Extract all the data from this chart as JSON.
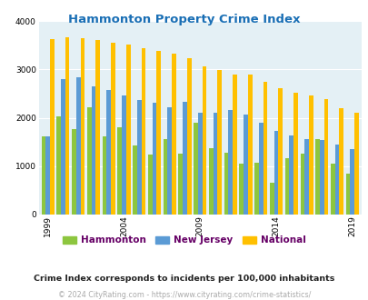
{
  "title": "Hammonton Property Crime Index",
  "title_color": "#1a6fb5",
  "years": [
    1999,
    2000,
    2001,
    2002,
    2003,
    2004,
    2005,
    2006,
    2007,
    2008,
    2009,
    2010,
    2011,
    2012,
    2013,
    2014,
    2015,
    2016,
    2017,
    2018,
    2019,
    2020
  ],
  "hammonton": [
    1620,
    2020,
    1770,
    2220,
    1620,
    1800,
    1420,
    1230,
    1560,
    1250,
    1900,
    1380,
    1270,
    1050,
    1070,
    660,
    1170,
    1250,
    1560,
    1050,
    840,
    null
  ],
  "new_jersey": [
    1620,
    2800,
    2840,
    2650,
    2570,
    2460,
    2360,
    2310,
    2210,
    2320,
    2100,
    2100,
    2160,
    2070,
    1900,
    1730,
    1630,
    1560,
    1540,
    1440,
    1350,
    null
  ],
  "national": [
    3620,
    3660,
    3650,
    3610,
    3560,
    3520,
    3440,
    3380,
    3330,
    3230,
    3060,
    2990,
    2900,
    2890,
    2750,
    2620,
    2510,
    2470,
    2390,
    2200,
    2100,
    null
  ],
  "hammonton_color": "#8dc63f",
  "nj_color": "#5b9bd5",
  "national_color": "#ffc000",
  "plot_bg": "#e4f0f5",
  "ylim": [
    0,
    4000
  ],
  "yticks": [
    0,
    1000,
    2000,
    3000,
    4000
  ],
  "xlabel_ticks": [
    1999,
    2004,
    2009,
    2014,
    2019
  ],
  "legend_labels": [
    "Hammonton",
    "New Jersey",
    "National"
  ],
  "legend_text_color": "#660066",
  "footnote1": "Crime Index corresponds to incidents per 100,000 inhabitants",
  "footnote2": "© 2024 CityRating.com - https://www.cityrating.com/crime-statistics/",
  "footnote1_color": "#222222",
  "footnote2_color": "#aaaaaa"
}
